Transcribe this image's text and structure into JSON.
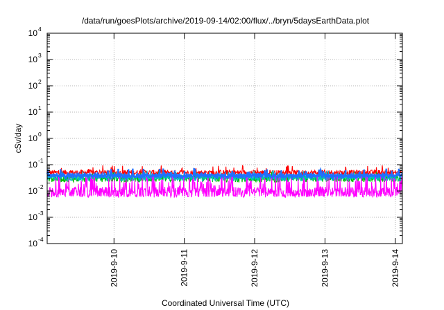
{
  "chart_data": {
    "type": "line",
    "title": "/data/run/goesPlots/archive/2019-09-14/02:00/flux/../bryn/5daysEarthData.plot",
    "xlabel": "Coordinated Universal Time (UTC)",
    "ylabel": "cSv/day",
    "yscale": "log",
    "ylim": [
      0.0001,
      10000
    ],
    "xlim": [
      -0.95,
      4.1
    ],
    "x_ticks": [
      {
        "x": 0,
        "label": "2019-9-10"
      },
      {
        "x": 1,
        "label": "2019-9-11"
      },
      {
        "x": 2,
        "label": "2019-9-12"
      },
      {
        "x": 3,
        "label": "2019-9-13"
      },
      {
        "x": 4,
        "label": "2019-9-14"
      }
    ],
    "y_ticks": [
      {
        "base": "10",
        "exp": "-4",
        "value": 0.0001
      },
      {
        "base": "10",
        "exp": "-3",
        "value": 0.001
      },
      {
        "base": "10",
        "exp": "-2",
        "value": 0.01
      },
      {
        "base": "10",
        "exp": "-1",
        "value": 0.1
      },
      {
        "base": "10",
        "exp": "0",
        "value": 1
      },
      {
        "base": "10",
        "exp": "1",
        "value": 10
      },
      {
        "base": "10",
        "exp": "2",
        "value": 100
      },
      {
        "base": "10",
        "exp": "3",
        "value": 1000
      },
      {
        "base": "10",
        "exp": "4",
        "value": 10000
      }
    ],
    "grid": true,
    "series": [
      {
        "color": "#ff0000",
        "typical": 0.05,
        "spread": 0.1,
        "spikes": 0.09
      },
      {
        "color": "#00c000",
        "typical": 0.03,
        "spread": 0.14,
        "spikes": 0.05
      },
      {
        "color": "#00c0c0",
        "typical": 0.032,
        "spread": 0.12,
        "spikes": 0.055
      },
      {
        "color": "#2070ff",
        "typical": 0.038,
        "spread": 0.08,
        "spikes": 0.06
      },
      {
        "color": "#ff00ff",
        "typical": 0.009,
        "spread": 0.2,
        "spikes": 0.03
      }
    ]
  }
}
